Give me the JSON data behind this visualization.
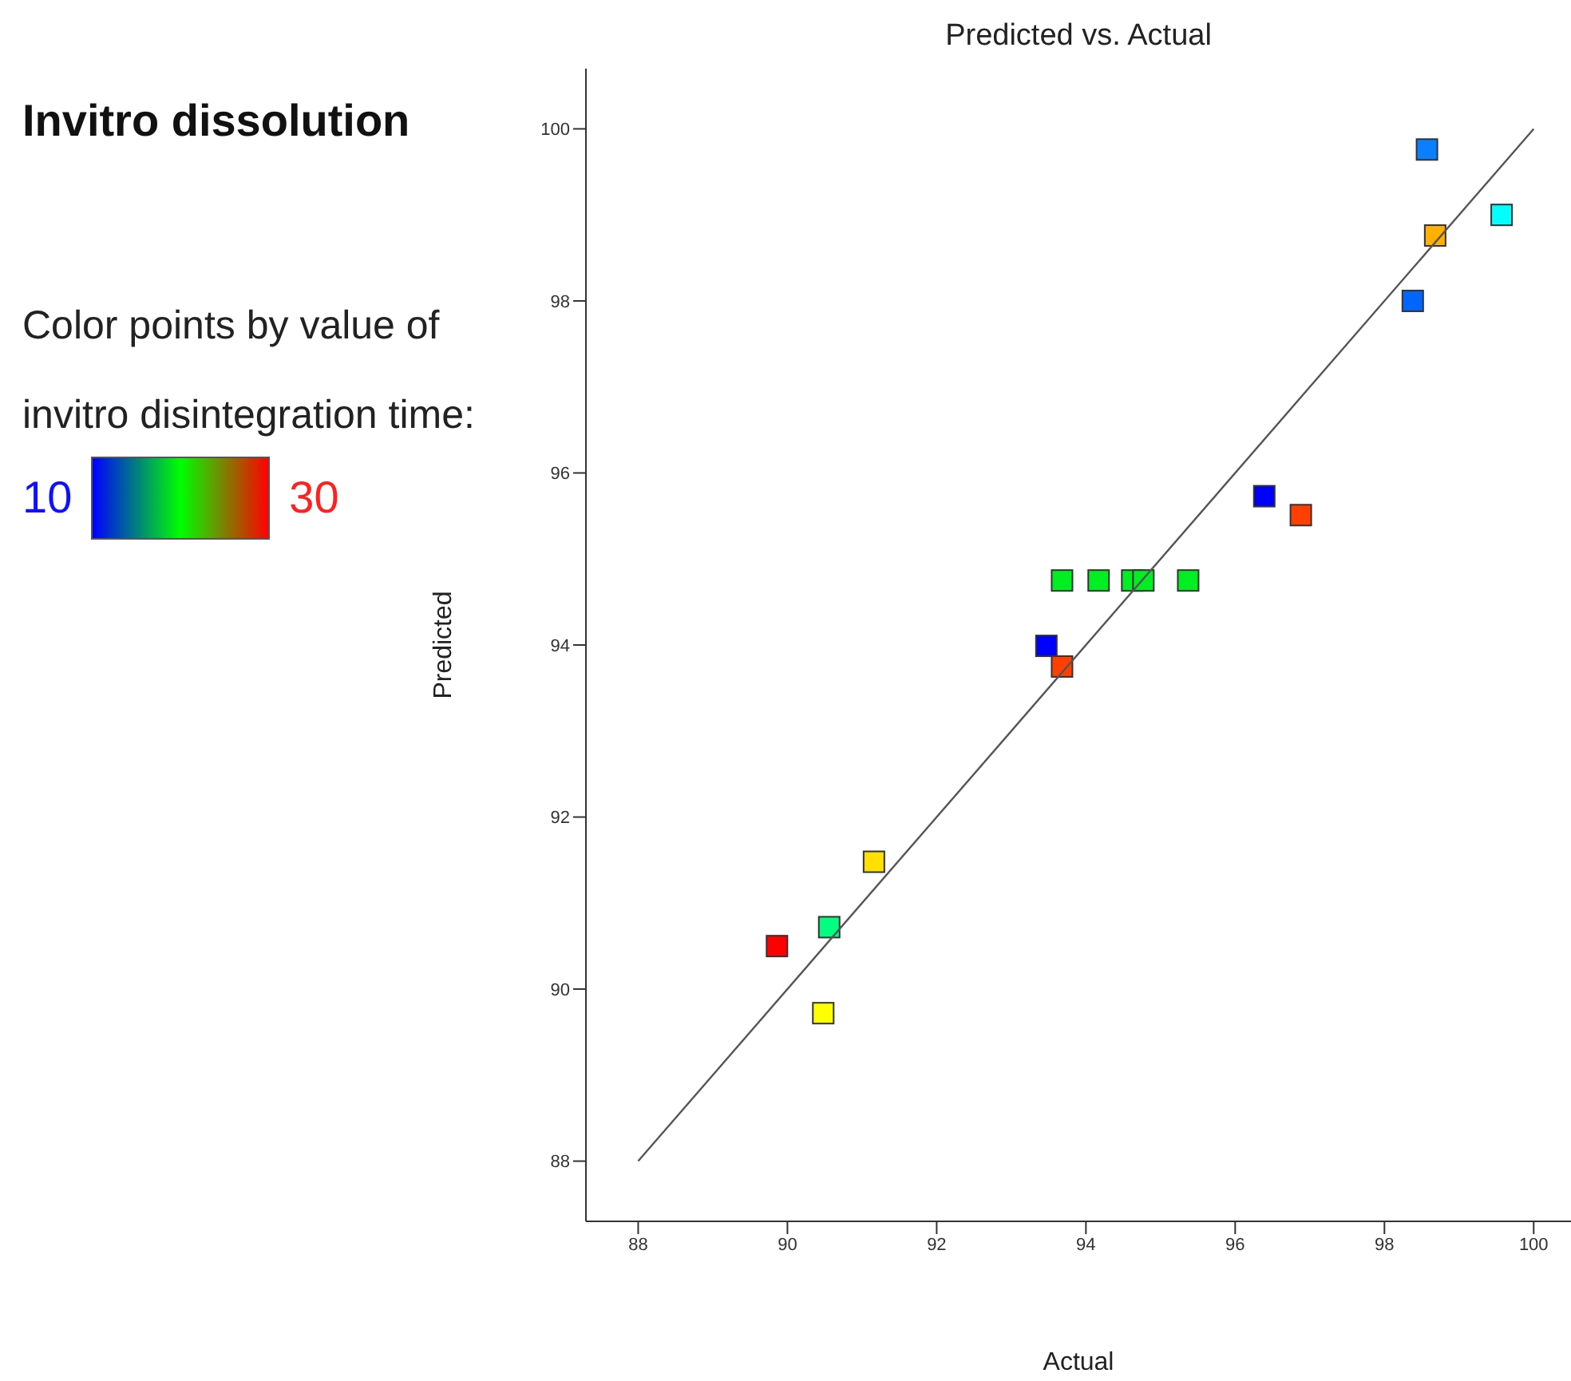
{
  "chart_data": {
    "type": "scatter",
    "title": "Invitro dissolution",
    "subtitle": "Predicted vs. Actual",
    "xlabel": "Actual",
    "ylabel": "Predicted",
    "clabel": "Color points by value of invitro disintegration time:",
    "annotations": [
      "10",
      "30"
    ],
    "marker": "square",
    "xlim": [
      87.3,
      100.5
    ],
    "ylim": [
      87.3,
      100.7
    ],
    "xticks": [
      88,
      90,
      92,
      94,
      96,
      98,
      100
    ],
    "yticks": [
      88,
      90,
      92,
      94,
      96,
      98,
      100
    ],
    "series": [
      {
        "x": [
          98.57,
          99.57,
          98.68,
          98.38,
          96.39,
          96.88,
          93.68,
          94.17,
          94.62,
          94.77,
          95.37,
          93.47,
          93.68,
          91.16,
          90.56,
          89.86,
          90.48
        ],
        "values": [
          99.76,
          99.0,
          98.76,
          98.0,
          95.73,
          95.51,
          94.75,
          94.75,
          94.75,
          94.75,
          94.75,
          93.99,
          93.75,
          91.48,
          90.72,
          90.5,
          89.72
        ],
        "colors": [
          "#0a80ff",
          "#00ffff",
          "#ffb000",
          "#0066ff",
          "#0000ff",
          "#ff4000",
          "#00ee22",
          "#00ee22",
          "#00ee22",
          "#00ee22",
          "#00ee22",
          "#0000ff",
          "#ff4000",
          "#ffe000",
          "#00ff80",
          "#ff0000",
          "#ffff00"
        ]
      },
      {
        "type": "line",
        "x": [
          88,
          100
        ],
        "values": [
          88,
          100
        ],
        "color": "#555555",
        "marker": "none"
      }
    ]
  }
}
